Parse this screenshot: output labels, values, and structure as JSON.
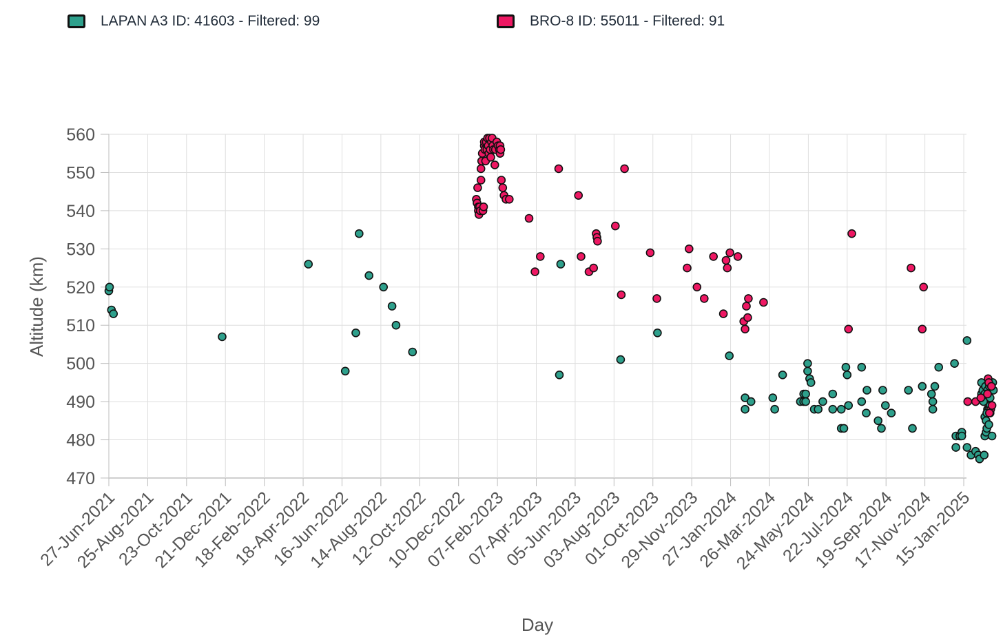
{
  "chart_data": {
    "type": "scatter",
    "title": "",
    "xlabel": "Day",
    "ylabel": "Altitude (km)",
    "x_range": [
      "2021-06-27",
      "2025-03-08"
    ],
    "ylim": [
      470,
      560
    ],
    "y_ticks": [
      470,
      480,
      490,
      500,
      510,
      520,
      530,
      540,
      550,
      560
    ],
    "x_tick_labels": [
      "27-Jun-2021",
      "25-Aug-2021",
      "23-Oct-2021",
      "21-Dec-2021",
      "18-Feb-2022",
      "18-Apr-2022",
      "16-Jun-2022",
      "14-Aug-2022",
      "12-Oct-2022",
      "10-Dec-2022",
      "07-Feb-2023",
      "07-Apr-2023",
      "05-Jun-2023",
      "03-Aug-2023",
      "01-Oct-2023",
      "29-Nov-2023",
      "27-Jan-2024",
      "26-Mar-2024",
      "24-May-2024",
      "22-Jul-2024",
      "19-Sep-2024",
      "17-Nov-2024",
      "15-Jan-2025"
    ],
    "x_tick_dates": [
      "2021-06-27",
      "2021-08-25",
      "2021-10-23",
      "2021-12-21",
      "2022-02-18",
      "2022-04-18",
      "2022-06-16",
      "2022-08-14",
      "2022-10-12",
      "2022-12-10",
      "2023-02-07",
      "2023-04-07",
      "2023-06-05",
      "2023-08-03",
      "2023-10-01",
      "2023-11-29",
      "2024-01-27",
      "2024-03-26",
      "2024-05-24",
      "2024-07-22",
      "2024-09-19",
      "2024-11-17",
      "2025-01-15"
    ],
    "grid": true,
    "legend_position": "top",
    "series": [
      {
        "name": "LAPAN A3 ID: 41603 - Filtered: 99",
        "color": "#2ea08c",
        "points": [
          [
            "2021-06-27",
            519
          ],
          [
            "2021-06-28",
            520
          ],
          [
            "2021-07-01",
            514
          ],
          [
            "2021-07-04",
            513
          ],
          [
            "2021-12-16",
            507
          ],
          [
            "2022-04-26",
            526
          ],
          [
            "2022-06-21",
            498
          ],
          [
            "2022-07-07",
            508
          ],
          [
            "2022-07-12",
            534
          ],
          [
            "2022-07-27",
            523
          ],
          [
            "2022-08-18",
            520
          ],
          [
            "2022-08-31",
            515
          ],
          [
            "2022-09-06",
            510
          ],
          [
            "2022-10-01",
            503
          ],
          [
            "2023-05-14",
            526
          ],
          [
            "2023-05-12",
            497
          ],
          [
            "2023-08-13",
            501
          ],
          [
            "2023-10-08",
            508
          ],
          [
            "2024-01-25",
            502
          ],
          [
            "2024-02-18",
            491
          ],
          [
            "2024-02-18",
            488
          ],
          [
            "2024-02-27",
            490
          ],
          [
            "2024-03-31",
            491
          ],
          [
            "2024-04-03",
            488
          ],
          [
            "2024-04-15",
            497
          ],
          [
            "2024-05-12",
            490
          ],
          [
            "2024-05-17",
            492
          ],
          [
            "2024-05-17",
            490
          ],
          [
            "2024-05-20",
            492
          ],
          [
            "2024-05-20",
            490
          ],
          [
            "2024-05-23",
            500
          ],
          [
            "2024-05-23",
            498
          ],
          [
            "2024-05-26",
            496
          ],
          [
            "2024-05-28",
            495
          ],
          [
            "2024-06-02",
            488
          ],
          [
            "2024-06-08",
            488
          ],
          [
            "2024-06-15",
            490
          ],
          [
            "2024-06-30",
            492
          ],
          [
            "2024-06-30",
            488
          ],
          [
            "2024-07-13",
            488
          ],
          [
            "2024-07-13",
            483
          ],
          [
            "2024-07-17",
            483
          ],
          [
            "2024-07-20",
            499
          ],
          [
            "2024-07-22",
            497
          ],
          [
            "2024-07-24",
            489
          ],
          [
            "2024-08-13",
            499
          ],
          [
            "2024-08-13",
            490
          ],
          [
            "2024-08-20",
            487
          ],
          [
            "2024-08-21",
            493
          ],
          [
            "2024-09-07",
            485
          ],
          [
            "2024-09-12",
            483
          ],
          [
            "2024-09-14",
            493
          ],
          [
            "2024-09-18",
            489
          ],
          [
            "2024-09-27",
            487
          ],
          [
            "2024-10-23",
            493
          ],
          [
            "2024-10-29",
            483
          ],
          [
            "2024-11-13",
            494
          ],
          [
            "2024-11-27",
            492
          ],
          [
            "2024-11-29",
            490
          ],
          [
            "2024-11-29",
            488
          ],
          [
            "2024-12-02",
            494
          ],
          [
            "2024-12-08",
            499
          ],
          [
            "2025-01-01",
            500
          ],
          [
            "2025-01-03",
            478
          ],
          [
            "2025-01-03",
            481
          ],
          [
            "2025-01-09",
            481
          ],
          [
            "2025-01-12",
            482
          ],
          [
            "2025-01-12",
            481
          ],
          [
            "2025-01-20",
            478
          ],
          [
            "2025-01-20",
            506
          ],
          [
            "2025-01-26",
            476
          ],
          [
            "2025-02-02",
            477
          ],
          [
            "2025-02-06",
            476
          ],
          [
            "2025-02-08",
            475
          ],
          [
            "2025-02-11",
            492
          ],
          [
            "2025-02-11",
            495
          ],
          [
            "2025-02-13",
            493
          ],
          [
            "2025-02-15",
            476
          ],
          [
            "2025-02-16",
            481
          ],
          [
            "2025-02-16",
            486
          ],
          [
            "2025-02-17",
            494
          ],
          [
            "2025-02-18",
            482
          ],
          [
            "2025-02-18",
            485
          ],
          [
            "2025-02-19",
            483
          ],
          [
            "2025-02-20",
            488
          ],
          [
            "2025-02-20",
            493
          ],
          [
            "2025-02-21",
            491
          ],
          [
            "2025-02-22",
            488
          ],
          [
            "2025-02-22",
            484
          ],
          [
            "2025-02-24",
            489
          ],
          [
            "2025-02-24",
            491
          ],
          [
            "2025-02-25",
            493
          ],
          [
            "2025-02-27",
            481
          ],
          [
            "2025-02-28",
            495
          ],
          [
            "2025-03-01",
            493
          ],
          [
            "2025-02-16",
            492
          ],
          [
            "2025-02-23",
            494
          ],
          [
            "2025-02-14",
            490
          ],
          [
            "2025-02-19",
            487
          ]
        ]
      },
      {
        "name": "BRO-8 ID: 55011 - Filtered: 91",
        "color": "#ee1863",
        "points": [
          [
            "2023-01-06",
            543
          ],
          [
            "2023-01-07",
            542
          ],
          [
            "2023-01-08",
            546
          ],
          [
            "2023-01-09",
            541
          ],
          [
            "2023-01-09",
            540
          ],
          [
            "2023-01-10",
            539
          ],
          [
            "2023-01-11",
            541
          ],
          [
            "2023-01-12",
            540
          ],
          [
            "2023-01-13",
            548
          ],
          [
            "2023-01-13",
            551
          ],
          [
            "2023-01-14",
            553
          ],
          [
            "2023-01-15",
            555
          ],
          [
            "2023-01-16",
            540
          ],
          [
            "2023-01-17",
            541
          ],
          [
            "2023-01-18",
            557
          ],
          [
            "2023-01-18",
            558
          ],
          [
            "2023-01-19",
            556
          ],
          [
            "2023-01-20",
            553
          ],
          [
            "2023-01-21",
            558
          ],
          [
            "2023-01-22",
            556
          ],
          [
            "2023-01-23",
            559
          ],
          [
            "2023-01-24",
            557
          ],
          [
            "2023-01-25",
            555
          ],
          [
            "2023-01-26",
            559
          ],
          [
            "2023-01-27",
            556
          ],
          [
            "2023-01-28",
            554
          ],
          [
            "2023-01-29",
            558
          ],
          [
            "2023-01-30",
            559
          ],
          [
            "2023-01-31",
            557
          ],
          [
            "2023-02-01",
            556
          ],
          [
            "2023-02-03",
            552
          ],
          [
            "2023-02-04",
            556
          ],
          [
            "2023-02-06",
            558
          ],
          [
            "2023-02-08",
            557
          ],
          [
            "2023-02-10",
            556
          ],
          [
            "2023-02-11",
            555
          ],
          [
            "2023-02-11",
            557
          ],
          [
            "2023-02-12",
            556
          ],
          [
            "2023-02-13",
            548
          ],
          [
            "2023-02-15",
            546
          ],
          [
            "2023-02-17",
            544
          ],
          [
            "2023-02-20",
            543
          ],
          [
            "2023-02-25",
            543
          ],
          [
            "2023-03-27",
            538
          ],
          [
            "2023-04-05",
            524
          ],
          [
            "2023-04-13",
            528
          ],
          [
            "2023-05-11",
            551
          ],
          [
            "2023-06-10",
            544
          ],
          [
            "2023-06-14",
            528
          ],
          [
            "2023-06-26",
            524
          ],
          [
            "2023-07-03",
            525
          ],
          [
            "2023-07-07",
            534
          ],
          [
            "2023-07-08",
            533
          ],
          [
            "2023-07-09",
            532
          ],
          [
            "2023-08-05",
            536
          ],
          [
            "2023-08-14",
            518
          ],
          [
            "2023-08-19",
            551
          ],
          [
            "2023-09-27",
            529
          ],
          [
            "2023-10-07",
            517
          ],
          [
            "2023-11-22",
            525
          ],
          [
            "2023-11-25",
            530
          ],
          [
            "2023-12-07",
            520
          ],
          [
            "2023-12-18",
            517
          ],
          [
            "2024-01-01",
            528
          ],
          [
            "2024-01-16",
            513
          ],
          [
            "2024-01-20",
            527
          ],
          [
            "2024-01-22",
            525
          ],
          [
            "2024-01-26",
            529
          ],
          [
            "2024-02-07",
            528
          ],
          [
            "2024-02-16",
            511
          ],
          [
            "2024-02-18",
            509
          ],
          [
            "2024-02-20",
            515
          ],
          [
            "2024-02-22",
            512
          ],
          [
            "2024-02-23",
            517
          ],
          [
            "2024-03-17",
            516
          ],
          [
            "2024-07-24",
            509
          ],
          [
            "2024-07-29",
            534
          ],
          [
            "2024-10-27",
            525
          ],
          [
            "2024-11-13",
            509
          ],
          [
            "2024-11-15",
            520
          ],
          [
            "2025-01-21",
            490
          ],
          [
            "2025-02-02",
            490
          ],
          [
            "2025-02-10",
            491
          ],
          [
            "2025-02-21",
            496
          ],
          [
            "2025-02-22",
            495
          ],
          [
            "2025-02-24",
            487
          ],
          [
            "2025-02-25",
            488
          ],
          [
            "2025-02-26",
            494
          ],
          [
            "2025-02-27",
            489
          ],
          [
            "2025-02-23",
            487
          ],
          [
            "2025-02-20",
            492
          ]
        ]
      }
    ]
  }
}
